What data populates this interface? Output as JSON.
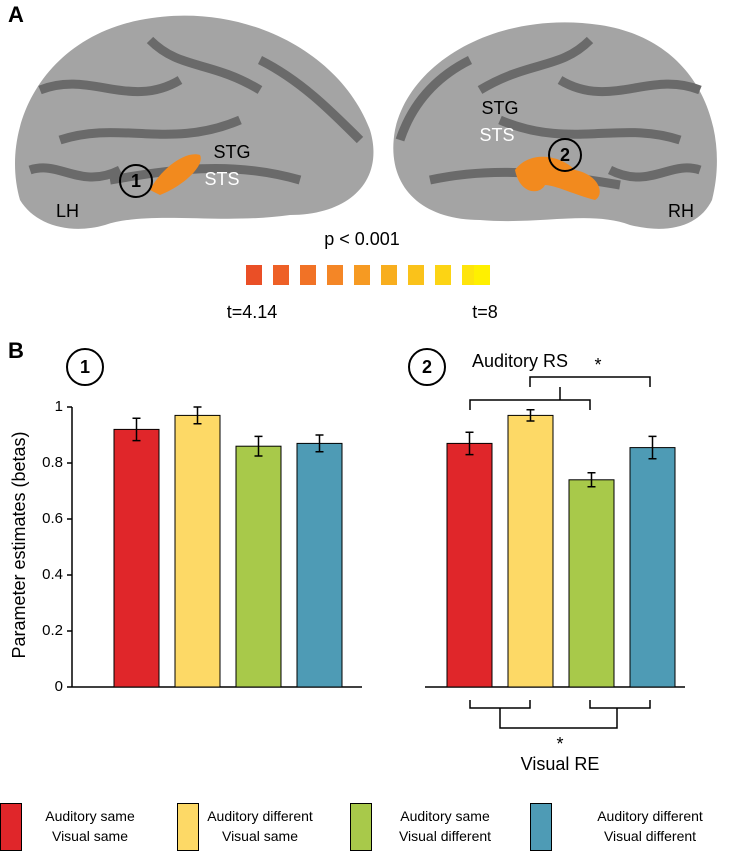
{
  "panel_a": {
    "label": "A",
    "left_hemisphere": "LH",
    "right_hemisphere": "RH",
    "left_stg": "STG",
    "left_sts": "STS",
    "right_stg": "STG",
    "right_sts": "STS",
    "threshold": "p < 0.001",
    "t_min": "t=4.14",
    "t_max": "t=8"
  },
  "chart_data": {
    "type": "bar",
    "panel_label": "B",
    "ylabel": "Parameter estimates (betas)",
    "categories": [
      "1",
      "2"
    ],
    "series": [
      {
        "name": "Auditory same\nVisual same",
        "color": "#e0262a",
        "values": [
          0.92,
          0.87
        ],
        "errors": [
          0.04,
          0.04
        ]
      },
      {
        "name": "Auditory different\nVisual same",
        "color": "#fdd966",
        "values": [
          0.97,
          0.97
        ],
        "errors": [
          0.03,
          0.02
        ]
      },
      {
        "name": "Auditory same\nVisual different",
        "color": "#a8c94a",
        "values": [
          0.86,
          0.74
        ],
        "errors": [
          0.035,
          0.025
        ]
      },
      {
        "name": "Auditory different\nVisual different",
        "color": "#4e9bb5",
        "values": [
          0.87,
          0.855
        ],
        "errors": [
          0.03,
          0.04
        ]
      }
    ],
    "ylim": [
      0,
      1
    ],
    "yticks": [
      0,
      0.2,
      0.4,
      0.6,
      0.8,
      1
    ],
    "annotations": {
      "auditory_rs": "Auditory RS",
      "auditory_rs_star": "*",
      "visual_re": "Visual RE",
      "visual_re_star": "*"
    }
  }
}
